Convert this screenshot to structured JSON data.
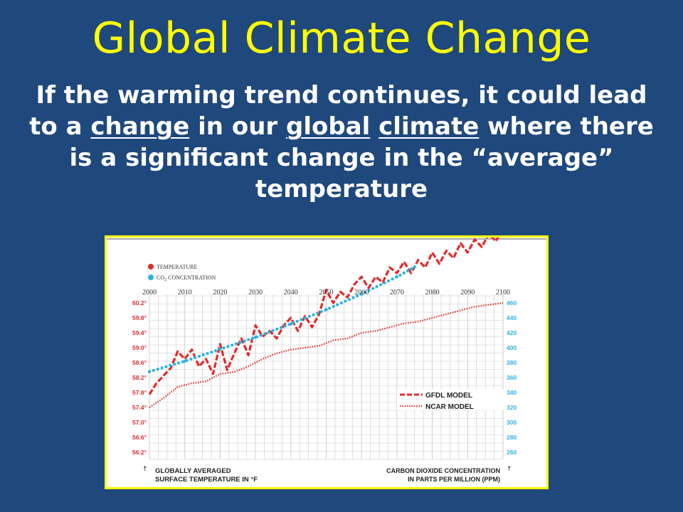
{
  "slide": {
    "title": "Global Climate Change",
    "body": {
      "line1": "If the warming trend continues, it could lead",
      "line2_prefix": "to a ",
      "line2_u1": "change",
      "line2_mid1": " in our ",
      "line2_u2": "global",
      "line2_mid2": " ",
      "line2_u3": "climate",
      "line2_suffix": " where there",
      "line3": "is a significant change in the “average”",
      "line4": "temperature"
    }
  },
  "chart_data": {
    "type": "line",
    "legend": {
      "temperature": "TEMPERATURE",
      "co2_prefix": "CO",
      "co2_sub": "2",
      "co2_suffix": " CONCENTRATION",
      "gfdl": "GFDL MODEL",
      "ncar": "NCAR MODEL"
    },
    "x_ticks": [
      "2000",
      "2010",
      "2020",
      "2030",
      "2040",
      "2050",
      "2060",
      "2070",
      "2080",
      "2090",
      "2100"
    ],
    "left_ticks": [
      "60.2°",
      "59.8°",
      "59.4°",
      "59.0°",
      "58.6°",
      "58.2°",
      "57.8°",
      "57.4°",
      "57.0°",
      "56.6°",
      "56.2°"
    ],
    "right_ticks": [
      "460",
      "440",
      "420",
      "400",
      "380",
      "360",
      "340",
      "320",
      "300",
      "280",
      "260"
    ],
    "left_ylim": [
      56.2,
      60.2
    ],
    "right_ylim": [
      260,
      460
    ],
    "xlim": [
      2000,
      2100
    ],
    "left_label_line1": "GLOBALLY AVERAGED",
    "left_label_line2": "SURFACE TEMPERATURE IN °F",
    "right_label_line1": "CARBON DIOXIDE CONCENTRATION",
    "right_label_line2": "IN PARTS PER MILLION (PPM)",
    "colors": {
      "temperature": "#e22b2b",
      "co2": "#2fb2e0",
      "grid": "#c9c9c9",
      "axis_text": "#e22b2b",
      "right_text": "#2fb2e0"
    },
    "series": [
      {
        "name": "GFDL MODEL",
        "axis": "left",
        "style": "dashed",
        "x": [
          2000,
          2002,
          2004,
          2006,
          2008,
          2010,
          2012,
          2014,
          2016,
          2018,
          2020,
          2022,
          2024,
          2026,
          2028,
          2030,
          2032,
          2034,
          2036,
          2038,
          2040,
          2042,
          2044,
          2046,
          2048,
          2050,
          2052,
          2054,
          2056,
          2058,
          2060,
          2062,
          2064,
          2066,
          2068,
          2070,
          2072,
          2074,
          2076,
          2078,
          2080,
          2082,
          2084,
          2086,
          2088,
          2090,
          2092,
          2094,
          2096,
          2098,
          2100
        ],
        "values": [
          57.75,
          58.05,
          58.25,
          58.45,
          58.9,
          58.7,
          58.95,
          58.5,
          58.7,
          58.3,
          59.1,
          58.4,
          58.85,
          59.25,
          58.8,
          59.6,
          59.3,
          59.45,
          59.25,
          59.6,
          59.8,
          59.45,
          59.85,
          59.55,
          59.9,
          60.55,
          60.2,
          60.5,
          60.35,
          60.7,
          60.9,
          60.6,
          60.9,
          60.75,
          61.15,
          61.0,
          61.3,
          61.0,
          61.35,
          61.15,
          61.55,
          61.25,
          61.6,
          61.4,
          61.8,
          61.55,
          61.9,
          61.7,
          62.05,
          61.85,
          62.2
        ]
      },
      {
        "name": "NCAR MODEL",
        "axis": "left",
        "style": "dotted",
        "x": [
          2000,
          2004,
          2008,
          2012,
          2016,
          2020,
          2024,
          2028,
          2032,
          2036,
          2040,
          2044,
          2048,
          2052,
          2056,
          2060,
          2064,
          2068,
          2072,
          2076,
          2080,
          2084,
          2088,
          2092,
          2096,
          2100
        ],
        "values": [
          57.4,
          57.65,
          57.95,
          58.05,
          58.1,
          58.3,
          58.35,
          58.5,
          58.7,
          58.85,
          58.95,
          59.0,
          59.05,
          59.2,
          59.25,
          59.4,
          59.45,
          59.55,
          59.65,
          59.7,
          59.8,
          59.9,
          60.0,
          60.1,
          60.15,
          60.2
        ]
      },
      {
        "name": "CO2 CONCENTRATION",
        "axis": "right",
        "style": "dots",
        "x": [
          2000,
          2010,
          2020,
          2030,
          2040,
          2050,
          2060,
          2070,
          2075
        ],
        "values": [
          368,
          382,
          398,
          414,
          432,
          451,
          472,
          495,
          508
        ]
      }
    ]
  }
}
